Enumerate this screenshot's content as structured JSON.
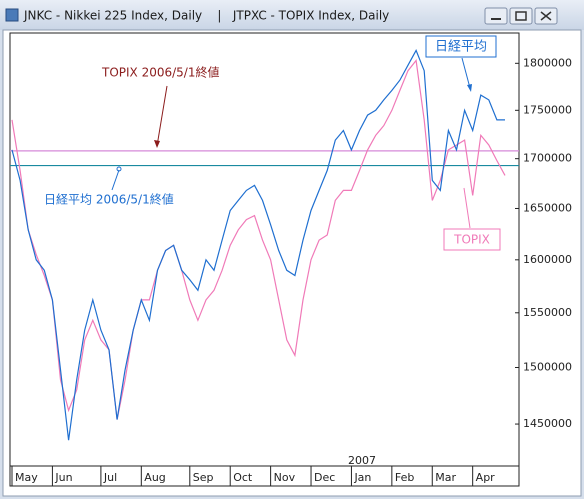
{
  "window_title": "JNKC - Nikkei 225 Index, Daily    |   JTPXC - TOPIX Index, Daily",
  "chart_data": {
    "type": "line",
    "categories": [
      "May",
      null,
      null,
      null,
      null,
      "Jun",
      null,
      null,
      null,
      null,
      null,
      "Jul",
      null,
      null,
      null,
      null,
      "Aug",
      null,
      null,
      null,
      null,
      null,
      "Sep",
      null,
      null,
      null,
      null,
      "Oct",
      null,
      null,
      null,
      null,
      "Nov",
      null,
      null,
      null,
      null,
      "Dec",
      null,
      null,
      null,
      null,
      "Jan",
      null,
      null,
      null,
      null,
      "Feb",
      null,
      null,
      null,
      null,
      "Mar",
      null,
      null,
      null,
      null,
      "Apr",
      null,
      null,
      null,
      null
    ],
    "series": [
      {
        "name": "JNKC",
        "color": "#1f6fd0",
        "values": [
          1709000,
          1678000,
          1629000,
          1600000,
          1590000,
          1562000,
          1498000,
          1436000,
          1489000,
          1534000,
          1562000,
          1534000,
          1516000,
          1454000,
          1498000,
          1534000,
          1562000,
          1543000,
          1590000,
          1609000,
          1614000,
          1590000,
          1581000,
          1571000,
          1600000,
          1590000,
          1619000,
          1648000,
          1658000,
          1668000,
          1673000,
          1658000,
          1634000,
          1609000,
          1590000,
          1585000,
          1619000,
          1648000,
          1668000,
          1688000,
          1719000,
          1729000,
          1709000,
          1729000,
          1745000,
          1750000,
          1761000,
          1771000,
          1782000,
          1798000,
          1814000,
          1792000,
          1678000,
          1668000,
          1729000,
          1709000,
          1750000,
          1729000,
          1766000,
          1761000,
          1740000,
          1740000
        ]
      },
      {
        "name": "JTPXC",
        "color": "#f07ab8",
        "values": [
          1740000,
          1688000,
          1629000,
          1605000,
          1585000,
          1562000,
          1489000,
          1462000,
          1480000,
          1525000,
          1543000,
          1525000,
          1516000,
          1454000,
          1489000,
          1534000,
          1562000,
          1562000,
          1590000,
          1609000,
          1614000,
          1590000,
          1562000,
          1543000,
          1562000,
          1571000,
          1590000,
          1614000,
          1629000,
          1639000,
          1643000,
          1619000,
          1600000,
          1562000,
          1525000,
          1511000,
          1562000,
          1600000,
          1619000,
          1624000,
          1658000,
          1668000,
          1668000,
          1688000,
          1709000,
          1724000,
          1734000,
          1750000,
          1771000,
          1792000,
          1803000,
          1740000,
          1658000,
          1678000,
          1709000,
          1714000,
          1719000,
          1663000,
          1724000,
          1714000,
          1698000,
          1683000
        ]
      }
    ],
    "reference_lines": [
      {
        "value": 1708000,
        "color": "#d58ad8"
      },
      {
        "value": 1693000,
        "color": "#1a8aa0"
      }
    ],
    "ylim": [
      1414000,
      1833000
    ],
    "yticks": [
      1450000,
      1500000,
      1550000,
      1600000,
      1650000,
      1700000,
      1750000,
      1800000
    ],
    "log_scale": true,
    "year_label": "2007",
    "annotations": [
      "TOPIX 2006/5/1終値",
      "日経平均 2006/5/1終値",
      "日経平均",
      "TOPIX"
    ]
  }
}
